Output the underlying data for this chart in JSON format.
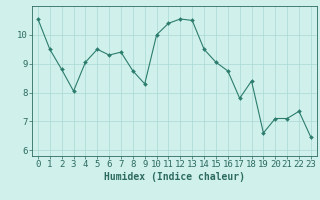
{
  "x": [
    0,
    1,
    2,
    3,
    4,
    5,
    6,
    7,
    8,
    9,
    10,
    11,
    12,
    13,
    14,
    15,
    16,
    17,
    18,
    19,
    20,
    21,
    22,
    23
  ],
  "y": [
    10.55,
    9.5,
    8.8,
    8.05,
    9.05,
    9.5,
    9.3,
    9.4,
    8.75,
    8.3,
    10.0,
    10.4,
    10.55,
    10.5,
    9.5,
    9.05,
    8.75,
    7.8,
    8.4,
    6.6,
    7.1,
    7.1,
    7.35,
    6.45
  ],
  "line_color": "#2d7d6e",
  "marker": "D",
  "marker_size": 2.0,
  "bg_color": "#cff0eb",
  "grid_color": "#aad8d3",
  "xlabel": "Humidex (Indice chaleur)",
  "xlim": [
    -0.5,
    23.5
  ],
  "ylim": [
    5.8,
    11.0
  ],
  "yticks": [
    6,
    7,
    8,
    9,
    10
  ],
  "xticks": [
    0,
    1,
    2,
    3,
    4,
    5,
    6,
    7,
    8,
    9,
    10,
    11,
    12,
    13,
    14,
    15,
    16,
    17,
    18,
    19,
    20,
    21,
    22,
    23
  ],
  "xlabel_fontsize": 7,
  "tick_fontsize": 6.5,
  "axis_color": "#2d6b60",
  "linewidth": 0.8
}
